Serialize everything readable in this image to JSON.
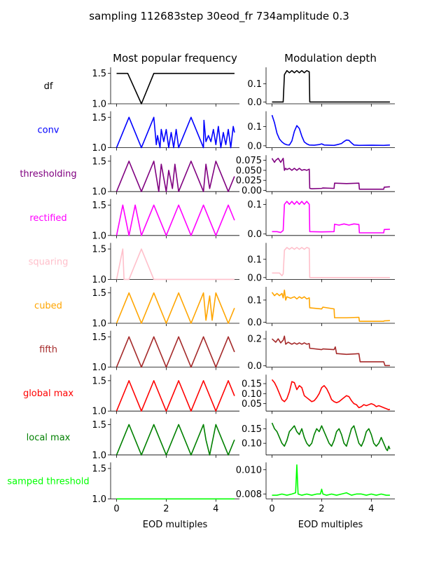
{
  "figure": {
    "suptitle": "sampling 112683step 30eod_fr 734amplitude 0.3",
    "col_titles": [
      "Most popular frequency",
      "Modulation depth"
    ],
    "xlabel": "EOD multiples",
    "xticks": [
      "0",
      "2",
      "4"
    ]
  },
  "rows": [
    {
      "label": "df",
      "color": "#000000"
    },
    {
      "label": "conv",
      "color": "#0000ff"
    },
    {
      "label": "thresholding",
      "color": "#800080"
    },
    {
      "label": "rectified",
      "color": "#ff00ff"
    },
    {
      "label": "squaring",
      "color": "#ffc0cb"
    },
    {
      "label": "cubed",
      "color": "#ffa500"
    },
    {
      "label": "fifth",
      "color": "#a52a2a"
    },
    {
      "label": "global max",
      "color": "#ff0000"
    },
    {
      "label": "local max",
      "color": "#008000"
    },
    {
      "label": "samped threshold",
      "color": "#00ff00"
    }
  ],
  "chart_data": [
    {
      "type": "line",
      "row": "df",
      "panel": "Most popular frequency",
      "ylim": [
        1.0,
        1.6
      ],
      "yticks": [
        "1.0",
        "1.5"
      ],
      "x": [
        0,
        0.45,
        1.0,
        1.5,
        4.75
      ],
      "y": [
        1.5,
        1.5,
        1.0,
        1.5,
        1.5
      ]
    },
    {
      "type": "line",
      "row": "df",
      "panel": "Modulation depth",
      "ylim": [
        -0.01,
        0.19
      ],
      "yticks": [
        "0.0",
        "0.1"
      ],
      "x": [
        0,
        0.45,
        0.5,
        0.6,
        0.7,
        0.8,
        0.9,
        1.0,
        1.1,
        1.2,
        1.3,
        1.4,
        1.5,
        1.52,
        4.75
      ],
      "y": [
        0,
        0,
        0.15,
        0.172,
        0.16,
        0.172,
        0.16,
        0.172,
        0.16,
        0.172,
        0.16,
        0.172,
        0.165,
        0,
        0
      ]
    },
    {
      "type": "line",
      "row": "conv",
      "panel": "Most popular frequency",
      "ylim": [
        1.0,
        1.6
      ],
      "yticks": [
        "1.0",
        "1.5"
      ],
      "x": [
        0,
        0.5,
        1.0,
        1.5,
        1.6,
        1.65,
        1.75,
        1.8,
        1.9,
        2.0,
        2.1,
        2.2,
        2.3,
        2.4,
        2.5,
        3.0,
        3.5,
        3.52,
        3.6,
        3.7,
        3.8,
        3.9,
        4.0,
        4.1,
        4.2,
        4.3,
        4.4,
        4.5,
        4.6,
        4.7,
        4.75
      ],
      "y": [
        1.0,
        1.5,
        1.0,
        1.5,
        1.05,
        1.2,
        1.0,
        1.3,
        1.1,
        1.3,
        1.0,
        1.25,
        1.0,
        1.3,
        1.0,
        1.5,
        1.0,
        1.45,
        1.1,
        1.2,
        1.1,
        1.3,
        1.05,
        1.35,
        1.0,
        1.25,
        1.05,
        1.3,
        1.0,
        1.35,
        1.25
      ]
    },
    {
      "type": "line",
      "row": "conv",
      "panel": "Modulation depth",
      "ylim": [
        -0.01,
        0.18
      ],
      "yticks": [
        "0.0",
        "0.1"
      ],
      "x": [
        0,
        0.1,
        0.2,
        0.3,
        0.4,
        0.5,
        0.6,
        0.7,
        0.8,
        0.9,
        1.0,
        1.1,
        1.2,
        1.3,
        1.4,
        1.5,
        1.7,
        1.9,
        2.0,
        2.1,
        2.3,
        2.5,
        2.7,
        2.8,
        2.9,
        3.0,
        3.1,
        3.2,
        3.3,
        3.5,
        4.0,
        4.5,
        4.75
      ],
      "y": [
        0.16,
        0.12,
        0.065,
        0.035,
        0.02,
        0.01,
        0.005,
        0.004,
        0.025,
        0.075,
        0.105,
        0.09,
        0.05,
        0.02,
        0.01,
        0.004,
        0.003,
        0.006,
        0.01,
        0.004,
        0.003,
        0.002,
        0.008,
        0.012,
        0.022,
        0.03,
        0.028,
        0.015,
        0.004,
        0.002,
        0.003,
        0.002,
        0.004
      ]
    },
    {
      "type": "line",
      "row": "thresholding",
      "panel": "Most popular frequency",
      "ylim": [
        1.0,
        1.6
      ],
      "yticks": [
        "1.0",
        "1.5"
      ],
      "x": [
        0,
        0.5,
        1.0,
        1.5,
        1.7,
        1.8,
        2.0,
        2.1,
        2.25,
        2.35,
        2.5,
        3.0,
        3.5,
        3.6,
        3.75,
        4.0,
        4.5,
        4.75
      ],
      "y": [
        1.0,
        1.5,
        1.0,
        1.5,
        1.0,
        1.45,
        1.0,
        1.35,
        1.05,
        1.45,
        1.0,
        1.5,
        1.0,
        1.45,
        1.05,
        1.5,
        1.0,
        1.25
      ]
    },
    {
      "type": "line",
      "row": "thresholding",
      "panel": "Modulation depth",
      "ylim": [
        -0.003,
        0.088
      ],
      "yticks": [
        "0.00",
        "0.025",
        "0.050",
        "0.075"
      ],
      "ytick_vals": [
        0.0,
        0.025,
        0.05,
        0.075
      ],
      "x": [
        0,
        0.1,
        0.15,
        0.25,
        0.35,
        0.45,
        0.5,
        0.55,
        0.6,
        0.7,
        0.8,
        0.9,
        1.0,
        1.1,
        1.2,
        1.3,
        1.4,
        1.5,
        1.52,
        1.6,
        2.0,
        2.05,
        2.5,
        2.52,
        3.0,
        3.5,
        3.52,
        4.5,
        4.52,
        4.75
      ],
      "y": [
        0.08,
        0.07,
        0.075,
        0.08,
        0.07,
        0.08,
        0.05,
        0.055,
        0.052,
        0.055,
        0.05,
        0.055,
        0.05,
        0.055,
        0.05,
        0.052,
        0.05,
        0.053,
        0.005,
        0.004,
        0.005,
        0.006,
        0.005,
        0.018,
        0.017,
        0.018,
        0.003,
        0.003,
        0.008,
        0.009
      ]
    },
    {
      "type": "line",
      "row": "rectified",
      "panel": "Most popular frequency",
      "ylim": [
        1.0,
        1.6
      ],
      "yticks": [
        "1.0",
        "1.5"
      ],
      "x": [
        0,
        0.25,
        0.5,
        0.75,
        1.0,
        1.5,
        2.0,
        2.5,
        3.0,
        3.5,
        4.0,
        4.5,
        4.75
      ],
      "y": [
        1.0,
        1.5,
        1.0,
        1.5,
        1.0,
        1.5,
        1.0,
        1.5,
        1.0,
        1.5,
        1.0,
        1.5,
        1.25
      ]
    },
    {
      "type": "line",
      "row": "rectified",
      "panel": "Modulation depth",
      "ylim": [
        -0.005,
        0.118
      ],
      "yticks": [
        "0.0",
        "0.1"
      ],
      "x": [
        0,
        0.2,
        0.35,
        0.45,
        0.5,
        0.6,
        0.7,
        0.8,
        0.9,
        1.0,
        1.1,
        1.2,
        1.3,
        1.4,
        1.5,
        1.52,
        2.0,
        2.5,
        2.52,
        2.7,
        2.9,
        3.1,
        3.3,
        3.5,
        3.52,
        4.5,
        4.52,
        4.75
      ],
      "y": [
        0.008,
        0.008,
        0.005,
        0.012,
        0.1,
        0.11,
        0.1,
        0.11,
        0.1,
        0.11,
        0.1,
        0.11,
        0.1,
        0.11,
        0.1,
        0.008,
        0.007,
        0.008,
        0.033,
        0.03,
        0.034,
        0.03,
        0.034,
        0.032,
        0.004,
        0.004,
        0.015,
        0.016
      ]
    },
    {
      "type": "line",
      "row": "squaring",
      "panel": "Most popular frequency",
      "ylim": [
        1.0,
        1.6
      ],
      "yticks": [
        "1.0",
        "1.5"
      ],
      "x": [
        0,
        0.25,
        0.3,
        0.5,
        1.0,
        1.5,
        1.52,
        4.75
      ],
      "y": [
        1.0,
        1.5,
        1.0,
        1.0,
        1.5,
        1.0,
        1.0,
        1.0
      ]
    },
    {
      "type": "line",
      "row": "squaring",
      "panel": "Modulation depth",
      "ylim": [
        -0.01,
        0.19
      ],
      "yticks": [
        "0.0",
        "0.1"
      ],
      "x": [
        0,
        0.3,
        0.4,
        0.45,
        0.5,
        0.6,
        0.7,
        0.8,
        0.9,
        1.0,
        1.1,
        1.2,
        1.3,
        1.4,
        1.5,
        1.52,
        4.75
      ],
      "y": [
        0.025,
        0.025,
        0.01,
        0.02,
        0.15,
        0.165,
        0.155,
        0.165,
        0.155,
        0.165,
        0.155,
        0.165,
        0.155,
        0.165,
        0.16,
        0,
        0
      ]
    },
    {
      "type": "line",
      "row": "cubed",
      "panel": "Most popular frequency",
      "ylim": [
        1.0,
        1.6
      ],
      "yticks": [
        "1.0",
        "1.5"
      ],
      "x": [
        0,
        0.5,
        1.0,
        1.5,
        2.0,
        2.5,
        3.0,
        3.5,
        3.6,
        3.75,
        3.85,
        4.0,
        4.5,
        4.75
      ],
      "y": [
        1.0,
        1.5,
        1.0,
        1.5,
        1.0,
        1.5,
        1.0,
        1.5,
        1.05,
        1.45,
        1.05,
        1.5,
        1.0,
        1.25
      ]
    },
    {
      "type": "line",
      "row": "cubed",
      "panel": "Modulation depth",
      "ylim": [
        -0.005,
        0.16
      ],
      "yticks": [
        "0.0",
        "0.1"
      ],
      "x": [
        0,
        0.1,
        0.2,
        0.3,
        0.4,
        0.45,
        0.5,
        0.55,
        0.6,
        0.75,
        0.9,
        1.0,
        1.1,
        1.2,
        1.3,
        1.4,
        1.5,
        1.52,
        2.0,
        2.05,
        2.5,
        2.52,
        3.0,
        3.5,
        3.52,
        4.0,
        4.5,
        4.52,
        4.75
      ],
      "y": [
        0.135,
        0.12,
        0.13,
        0.12,
        0.13,
        0.11,
        0.145,
        0.1,
        0.115,
        0.108,
        0.115,
        0.105,
        0.115,
        0.108,
        0.115,
        0.105,
        0.11,
        0.065,
        0.06,
        0.068,
        0.06,
        0.02,
        0.02,
        0.022,
        0.004,
        0.004,
        0.004,
        0.006,
        0.007
      ]
    },
    {
      "type": "line",
      "row": "fifth",
      "panel": "Most popular frequency",
      "ylim": [
        1.0,
        1.6
      ],
      "yticks": [
        "1.0",
        "1.5"
      ],
      "x": [
        0,
        0.5,
        1.0,
        1.5,
        2.0,
        2.5,
        3.0,
        3.5,
        4.0,
        4.5,
        4.75
      ],
      "y": [
        1.0,
        1.5,
        1.0,
        1.5,
        1.0,
        1.5,
        1.0,
        1.5,
        1.0,
        1.5,
        1.25
      ]
    },
    {
      "type": "line",
      "row": "fifth",
      "panel": "Modulation depth",
      "ylim": [
        -0.01,
        0.26
      ],
      "yticks": [
        "0.0",
        "0.2"
      ],
      "x": [
        0,
        0.15,
        0.25,
        0.35,
        0.45,
        0.5,
        0.55,
        0.65,
        0.8,
        0.9,
        1.0,
        1.1,
        1.2,
        1.3,
        1.4,
        1.5,
        1.52,
        2.0,
        2.05,
        2.5,
        2.55,
        2.6,
        2.65,
        3.0,
        3.5,
        3.55,
        4.0,
        4.5,
        4.55,
        4.75
      ],
      "y": [
        0.2,
        0.175,
        0.2,
        0.17,
        0.19,
        0.22,
        0.16,
        0.175,
        0.16,
        0.17,
        0.16,
        0.17,
        0.16,
        0.17,
        0.16,
        0.165,
        0.13,
        0.12,
        0.125,
        0.12,
        0.14,
        0.09,
        0.09,
        0.085,
        0.09,
        0.03,
        0.03,
        0.03,
        0.002,
        0.002
      ]
    },
    {
      "type": "line",
      "row": "global max",
      "panel": "Most popular frequency",
      "ylim": [
        1.0,
        1.6
      ],
      "yticks": [
        "1.0",
        "1.5"
      ],
      "x": [
        0,
        0.5,
        1.0,
        1.5,
        2.0,
        2.5,
        3.0,
        3.5,
        4.0,
        4.5,
        4.75
      ],
      "y": [
        1.0,
        1.5,
        1.0,
        1.5,
        1.0,
        1.5,
        1.0,
        1.5,
        1.0,
        1.5,
        1.25
      ]
    },
    {
      "type": "line",
      "row": "global max",
      "panel": "Modulation depth",
      "ylim": [
        0.013,
        0.195
      ],
      "yticks": [
        "0.05",
        "0.10",
        "0.15"
      ],
      "ytick_vals": [
        0.05,
        0.1,
        0.15
      ],
      "x": [
        0,
        0.1,
        0.2,
        0.3,
        0.4,
        0.5,
        0.6,
        0.7,
        0.8,
        0.9,
        1.0,
        1.1,
        1.2,
        1.3,
        1.4,
        1.5,
        1.6,
        1.7,
        1.8,
        1.9,
        2.0,
        2.1,
        2.2,
        2.3,
        2.4,
        2.5,
        2.6,
        2.7,
        2.8,
        2.9,
        3.0,
        3.1,
        3.2,
        3.3,
        3.4,
        3.5,
        3.6,
        3.7,
        3.8,
        3.9,
        4.0,
        4.1,
        4.2,
        4.3,
        4.4,
        4.5,
        4.6,
        4.7,
        4.75
      ],
      "y": [
        0.17,
        0.155,
        0.13,
        0.1,
        0.07,
        0.06,
        0.075,
        0.11,
        0.16,
        0.155,
        0.12,
        0.14,
        0.13,
        0.09,
        0.08,
        0.07,
        0.06,
        0.065,
        0.08,
        0.1,
        0.13,
        0.14,
        0.125,
        0.1,
        0.07,
        0.06,
        0.055,
        0.06,
        0.07,
        0.08,
        0.09,
        0.085,
        0.065,
        0.05,
        0.045,
        0.03,
        0.035,
        0.045,
        0.04,
        0.045,
        0.05,
        0.045,
        0.035,
        0.04,
        0.035,
        0.03,
        0.025,
        0.02,
        0.022
      ]
    },
    {
      "type": "line",
      "row": "local max",
      "panel": "Most popular frequency",
      "ylim": [
        1.0,
        1.6
      ],
      "yticks": [
        "1.0",
        "1.5"
      ],
      "x": [
        0,
        0.5,
        1.0,
        1.5,
        2.0,
        2.5,
        3.0,
        3.5,
        3.6,
        3.75,
        4.0,
        4.5,
        4.75
      ],
      "y": [
        1.0,
        1.5,
        1.0,
        1.5,
        1.0,
        1.5,
        1.0,
        1.5,
        1.25,
        1.0,
        1.5,
        1.0,
        1.25
      ]
    },
    {
      "type": "line",
      "row": "local max",
      "panel": "Modulation depth",
      "ylim": [
        0.06,
        0.185
      ],
      "yticks": [
        "0.10",
        "0.15"
      ],
      "ytick_vals": [
        0.1,
        0.15
      ],
      "x": [
        0,
        0.1,
        0.2,
        0.3,
        0.4,
        0.5,
        0.6,
        0.7,
        0.8,
        0.9,
        1.0,
        1.1,
        1.2,
        1.3,
        1.4,
        1.5,
        1.6,
        1.7,
        1.8,
        1.9,
        2.0,
        2.1,
        2.2,
        2.3,
        2.4,
        2.5,
        2.6,
        2.7,
        2.8,
        2.9,
        3.0,
        3.1,
        3.2,
        3.3,
        3.4,
        3.5,
        3.6,
        3.7,
        3.8,
        3.9,
        4.0,
        4.1,
        4.2,
        4.3,
        4.4,
        4.5,
        4.6,
        4.65,
        4.7,
        4.75
      ],
      "y": [
        0.17,
        0.15,
        0.14,
        0.12,
        0.1,
        0.09,
        0.11,
        0.14,
        0.15,
        0.16,
        0.14,
        0.13,
        0.15,
        0.12,
        0.1,
        0.09,
        0.1,
        0.13,
        0.15,
        0.14,
        0.16,
        0.14,
        0.12,
        0.1,
        0.09,
        0.11,
        0.14,
        0.15,
        0.13,
        0.1,
        0.09,
        0.12,
        0.15,
        0.16,
        0.13,
        0.1,
        0.09,
        0.11,
        0.14,
        0.15,
        0.13,
        0.1,
        0.09,
        0.1,
        0.12,
        0.1,
        0.08,
        0.075,
        0.09,
        0.08
      ]
    },
    {
      "type": "line",
      "row": "samped threshold",
      "panel": "Most popular frequency",
      "ylim": [
        1.0,
        1.6
      ],
      "yticks": [
        "1.0",
        "1.5"
      ],
      "x": [
        0,
        4.75
      ],
      "y": [
        1.0,
        1.0
      ]
    },
    {
      "type": "line",
      "row": "samped threshold",
      "panel": "Modulation depth",
      "ylim": [
        0.0076,
        0.0106
      ],
      "yticks": [
        "0.008",
        "0.010"
      ],
      "ytick_vals": [
        0.008,
        0.01
      ],
      "x": [
        0,
        0.2,
        0.4,
        0.6,
        0.8,
        0.95,
        1.0,
        1.05,
        1.2,
        1.4,
        1.6,
        1.8,
        1.95,
        2.0,
        2.05,
        2.2,
        2.4,
        2.6,
        2.8,
        3.0,
        3.2,
        3.4,
        3.6,
        3.8,
        4.0,
        4.2,
        4.4,
        4.6,
        4.75
      ],
      "y": [
        0.0079,
        0.0079,
        0.008,
        0.0079,
        0.008,
        0.0081,
        0.0104,
        0.008,
        0.0079,
        0.008,
        0.0079,
        0.008,
        0.008,
        0.0084,
        0.008,
        0.0079,
        0.008,
        0.0079,
        0.008,
        0.0081,
        0.0079,
        0.008,
        0.008,
        0.0079,
        0.008,
        0.0079,
        0.008,
        0.0079,
        0.0079
      ]
    }
  ]
}
